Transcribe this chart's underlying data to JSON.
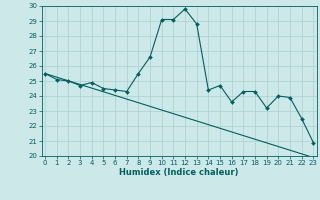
{
  "xlabel": "Humidex (Indice chaleur)",
  "bg_color": "#cce8e8",
  "grid_color": "#aacfcf",
  "line_color": "#006060",
  "xlim": [
    0,
    23
  ],
  "ylim": [
    20,
    30
  ],
  "yticks": [
    20,
    21,
    22,
    23,
    24,
    25,
    26,
    27,
    28,
    29,
    30
  ],
  "xticks": [
    0,
    1,
    2,
    3,
    4,
    5,
    6,
    7,
    8,
    9,
    10,
    11,
    12,
    13,
    14,
    15,
    16,
    17,
    18,
    19,
    20,
    21,
    22,
    23
  ],
  "series1_x": [
    0,
    1,
    2,
    3,
    4,
    5,
    6,
    7,
    8,
    9,
    10,
    11,
    12,
    13,
    14,
    15,
    16,
    17,
    18,
    19,
    20,
    21,
    22,
    23
  ],
  "series1_y": [
    25.5,
    25.1,
    25.0,
    24.7,
    24.9,
    24.5,
    24.4,
    24.3,
    25.5,
    26.6,
    29.1,
    29.1,
    29.8,
    28.8,
    24.4,
    24.7,
    23.6,
    24.3,
    24.3,
    23.2,
    24.0,
    23.9,
    22.5,
    20.9
  ],
  "series2_x": [
    0,
    23
  ],
  "series2_y": [
    25.5,
    19.9
  ],
  "xlabel_fontsize": 6,
  "tick_fontsize": 5
}
